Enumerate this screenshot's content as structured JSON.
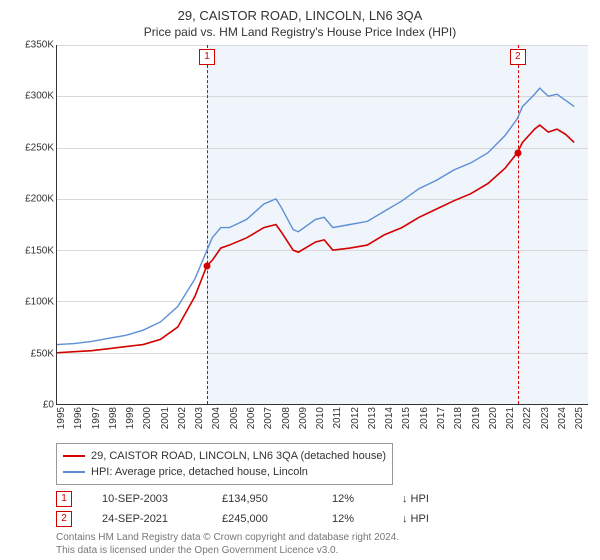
{
  "title": "29, CAISTOR ROAD, LINCOLN, LN6 3QA",
  "subtitle": "Price paid vs. HM Land Registry's House Price Index (HPI)",
  "chart": {
    "type": "line",
    "background_color": "#ffffff",
    "shaded_background_color": "#f0f4fb",
    "grid_color": "#d8d8d8",
    "axis_color": "#333333",
    "label_fontsize": 10,
    "y": {
      "min": 0,
      "max": 350000,
      "step": 50000,
      "labels": [
        "£0",
        "£50K",
        "£100K",
        "£150K",
        "£200K",
        "£250K",
        "£300K",
        "£350K"
      ]
    },
    "x": {
      "min": 1995,
      "max": 2025.8,
      "labels": [
        "1995",
        "1996",
        "1997",
        "1998",
        "1999",
        "2000",
        "2001",
        "2002",
        "2003",
        "2004",
        "2005",
        "2006",
        "2007",
        "2008",
        "2009",
        "2010",
        "2011",
        "2012",
        "2013",
        "2014",
        "2015",
        "2016",
        "2017",
        "2018",
        "2019",
        "2020",
        "2021",
        "2022",
        "2023",
        "2024",
        "2025"
      ]
    },
    "shade_start_year": 2003.7,
    "series": [
      {
        "name": "price_paid",
        "color": "#d40000",
        "width": 1.6,
        "points": [
          [
            1995,
            50000
          ],
          [
            1996,
            51000
          ],
          [
            1997,
            52000
          ],
          [
            1998,
            54000
          ],
          [
            1999,
            56000
          ],
          [
            2000,
            58000
          ],
          [
            2001,
            63000
          ],
          [
            2002,
            75000
          ],
          [
            2003,
            105000
          ],
          [
            2003.7,
            135000
          ],
          [
            2004,
            140000
          ],
          [
            2004.5,
            152000
          ],
          [
            2005,
            155000
          ],
          [
            2006,
            162000
          ],
          [
            2007,
            172000
          ],
          [
            2007.7,
            175000
          ],
          [
            2008,
            168000
          ],
          [
            2008.7,
            150000
          ],
          [
            2009,
            148000
          ],
          [
            2010,
            158000
          ],
          [
            2010.5,
            160000
          ],
          [
            2011,
            150000
          ],
          [
            2012,
            152000
          ],
          [
            2013,
            155000
          ],
          [
            2014,
            165000
          ],
          [
            2015,
            172000
          ],
          [
            2016,
            182000
          ],
          [
            2017,
            190000
          ],
          [
            2018,
            198000
          ],
          [
            2019,
            205000
          ],
          [
            2020,
            215000
          ],
          [
            2021,
            230000
          ],
          [
            2021.7,
            245000
          ],
          [
            2022,
            255000
          ],
          [
            2022.7,
            268000
          ],
          [
            2023,
            272000
          ],
          [
            2023.5,
            265000
          ],
          [
            2024,
            268000
          ],
          [
            2024.5,
            263000
          ],
          [
            2025,
            255000
          ]
        ]
      },
      {
        "name": "hpi",
        "color": "#5b8fd6",
        "width": 1.4,
        "points": [
          [
            1995,
            58000
          ],
          [
            1996,
            59000
          ],
          [
            1997,
            61000
          ],
          [
            1998,
            64000
          ],
          [
            1999,
            67000
          ],
          [
            2000,
            72000
          ],
          [
            2001,
            80000
          ],
          [
            2002,
            95000
          ],
          [
            2003,
            122000
          ],
          [
            2003.7,
            150000
          ],
          [
            2004,
            162000
          ],
          [
            2004.5,
            172000
          ],
          [
            2005,
            172000
          ],
          [
            2006,
            180000
          ],
          [
            2007,
            195000
          ],
          [
            2007.7,
            200000
          ],
          [
            2008,
            192000
          ],
          [
            2008.7,
            170000
          ],
          [
            2009,
            168000
          ],
          [
            2010,
            180000
          ],
          [
            2010.5,
            182000
          ],
          [
            2011,
            172000
          ],
          [
            2012,
            175000
          ],
          [
            2013,
            178000
          ],
          [
            2014,
            188000
          ],
          [
            2015,
            198000
          ],
          [
            2016,
            210000
          ],
          [
            2017,
            218000
          ],
          [
            2018,
            228000
          ],
          [
            2019,
            235000
          ],
          [
            2020,
            245000
          ],
          [
            2021,
            262000
          ],
          [
            2021.7,
            278000
          ],
          [
            2022,
            290000
          ],
          [
            2022.7,
            302000
          ],
          [
            2023,
            308000
          ],
          [
            2023.5,
            300000
          ],
          [
            2024,
            302000
          ],
          [
            2024.5,
            296000
          ],
          [
            2025,
            290000
          ]
        ]
      }
    ],
    "transactions": [
      {
        "n": "1",
        "year": 2003.7,
        "value": 134950,
        "line_color": "#d40000"
      },
      {
        "n": "2",
        "year": 2021.73,
        "value": 245000,
        "line_color": "#d40000"
      }
    ],
    "marker_box_color": "#d40000",
    "point_marker_color": "#d40000"
  },
  "legend": {
    "border_color": "#999999",
    "items": [
      {
        "color": "#d40000",
        "label": "29, CAISTOR ROAD, LINCOLN, LN6 3QA (detached house)"
      },
      {
        "color": "#5b8fd6",
        "label": "HPI: Average price, detached house, Lincoln"
      }
    ]
  },
  "tx_rows": [
    {
      "n": "1",
      "date": "10-SEP-2003",
      "price": "£134,950",
      "pct": "12%",
      "dir": "↓ HPI"
    },
    {
      "n": "2",
      "date": "24-SEP-2021",
      "price": "£245,000",
      "pct": "12%",
      "dir": "↓ HPI"
    }
  ],
  "tx_col_widths": {
    "date": "90px",
    "price": "80px",
    "pct": "40px"
  },
  "attribution": {
    "line1": "Contains HM Land Registry data © Crown copyright and database right 2024.",
    "line2": "This data is licensed under the Open Government Licence v3.0."
  }
}
